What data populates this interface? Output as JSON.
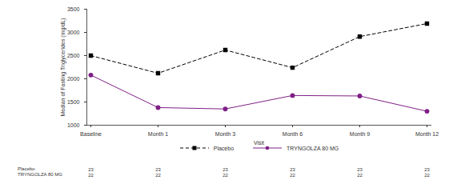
{
  "chart_data": {
    "type": "line",
    "x_label": "Visit",
    "y_label": "Median of Fasting Triglycerides (mg/dL)",
    "categories": [
      "Baseline",
      "Month 1",
      "Month 3",
      "Month 6",
      "Month 9",
      "Month 12"
    ],
    "series": [
      {
        "name": "Placebo",
        "color": "#000000",
        "marker": "square",
        "line_style": "dashed",
        "values": [
          2500,
          2120,
          2620,
          2240,
          2910,
          3190
        ],
        "at_risk": [
          23,
          23,
          23,
          23,
          23,
          23
        ]
      },
      {
        "name": "TRYNGOLZA 80 MG",
        "color": "#7f1f86",
        "marker": "circle",
        "line_style": "solid",
        "values": [
          2080,
          1380,
          1350,
          1640,
          1630,
          1300
        ],
        "at_risk": [
          22,
          22,
          22,
          22,
          22,
          22
        ]
      }
    ],
    "ylim": [
      1000,
      3500
    ],
    "yticks": [
      1000,
      1500,
      2000,
      2500,
      3000,
      3500
    ],
    "grid": false,
    "legend": "bottom"
  }
}
